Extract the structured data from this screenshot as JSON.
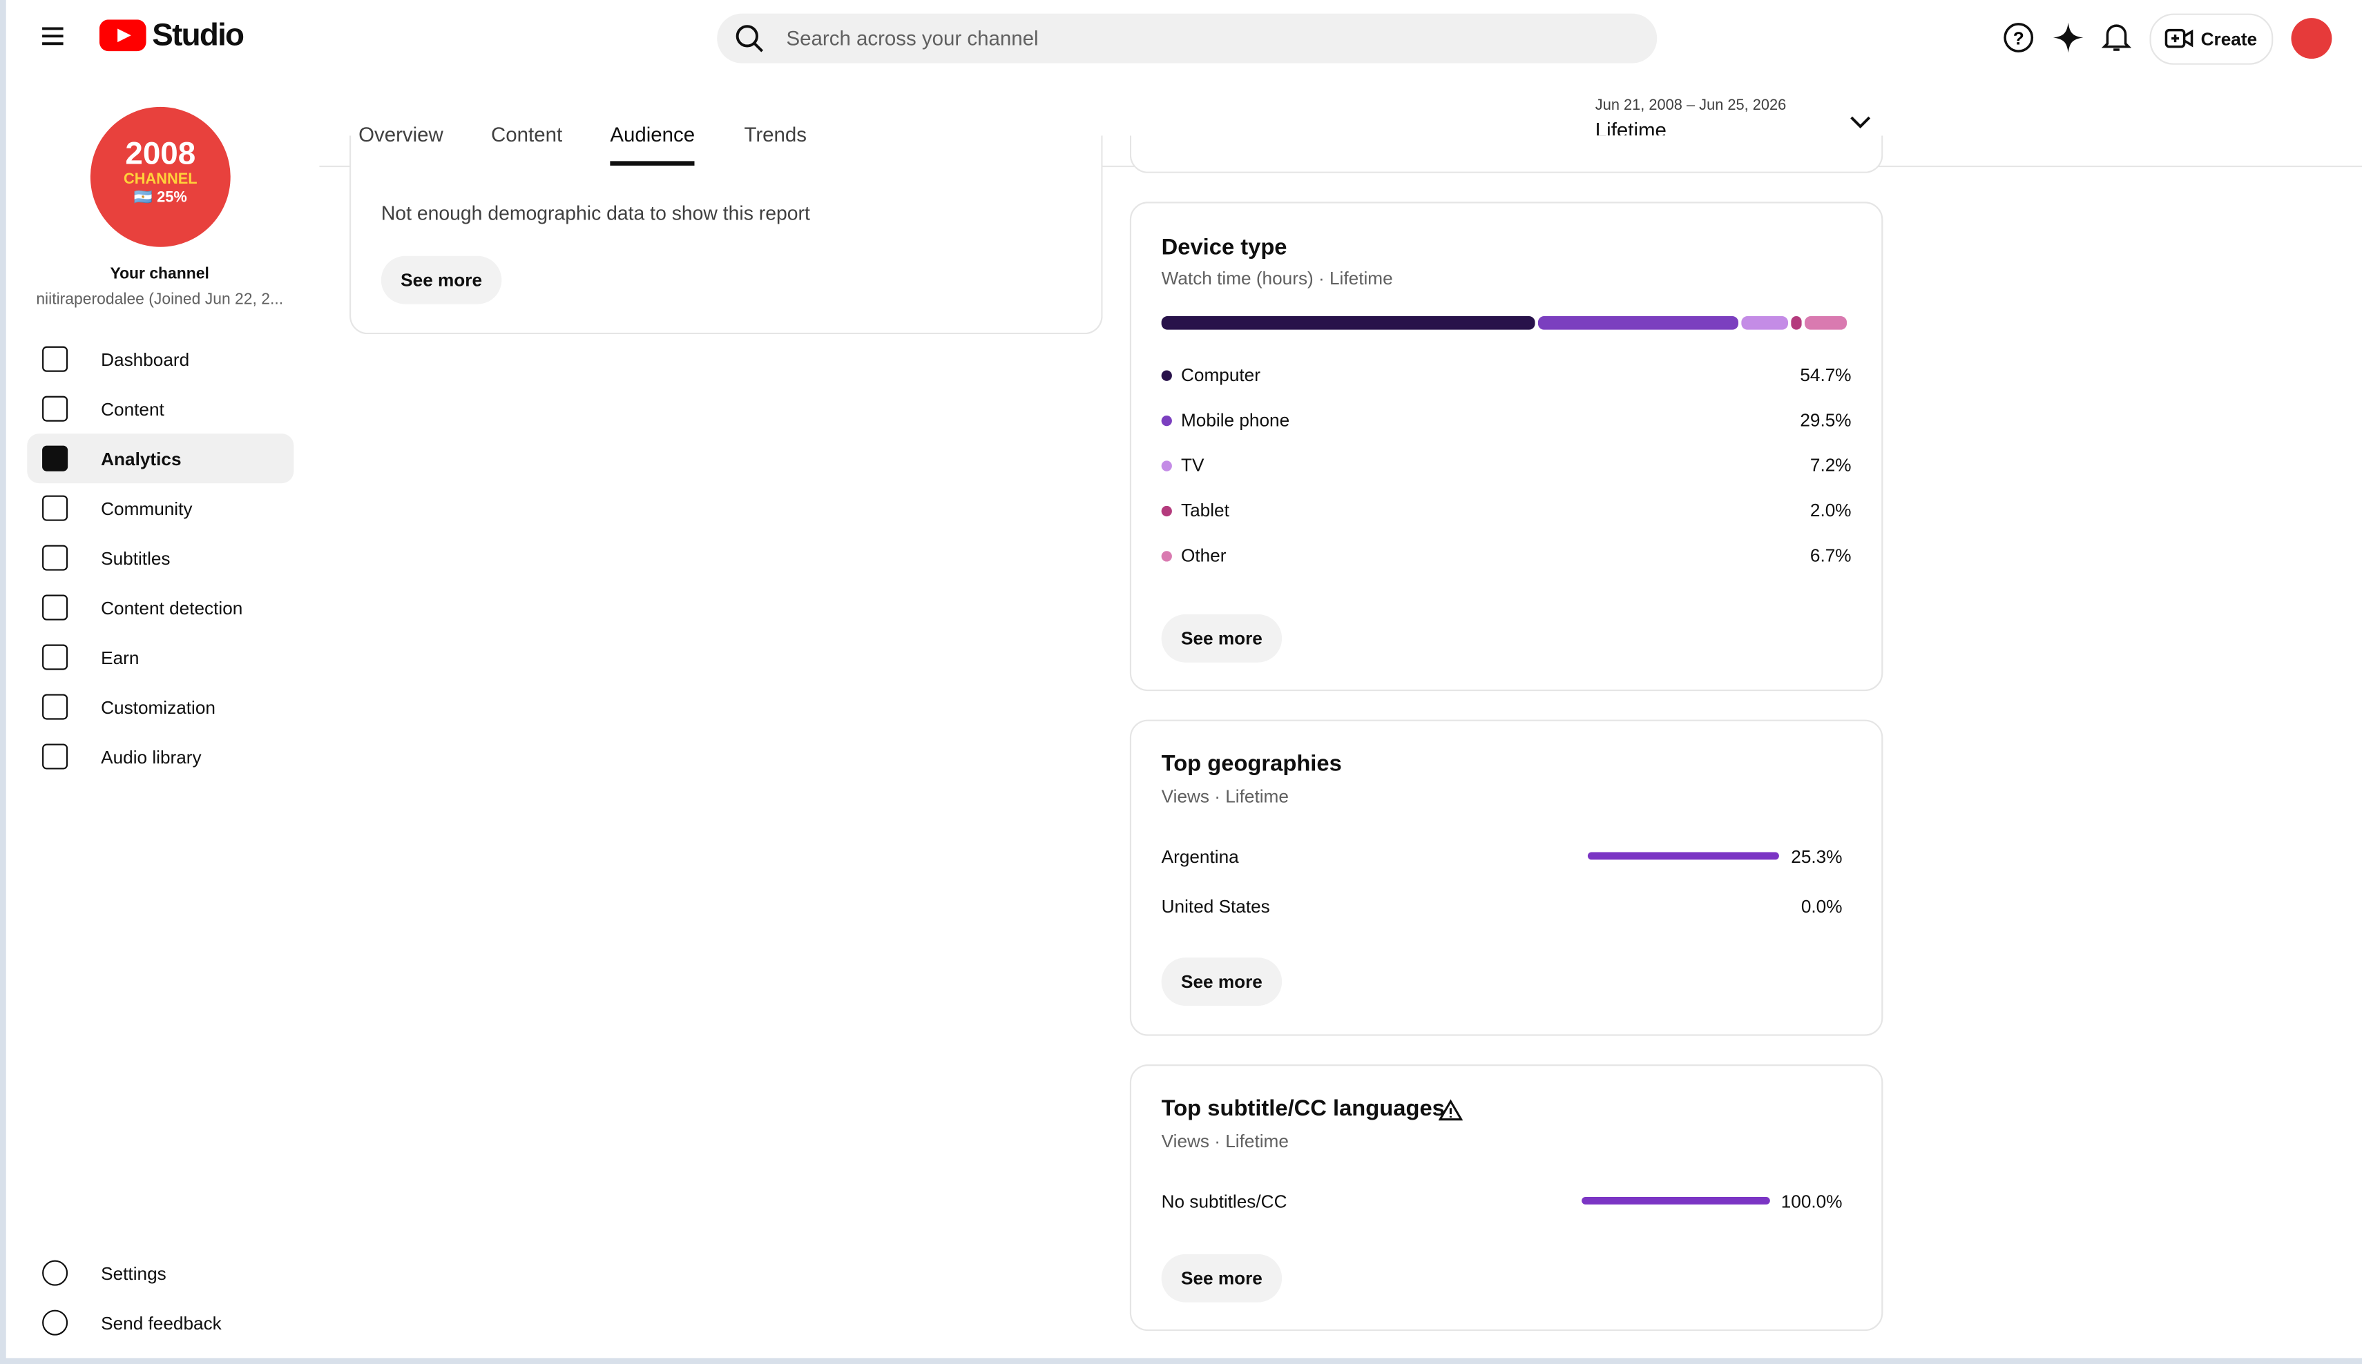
{
  "header": {
    "logo": "Studio",
    "search_placeholder": "Search across your channel",
    "create": "Create"
  },
  "sidebar": {
    "avatar": [
      "2008",
      "CHANNEL",
      "🇦🇷 25%"
    ],
    "channel_title": "Your channel",
    "channel_subtitle": "niitiraperodalee (Joined Jun 22, 2...",
    "nav": [
      "Dashboard",
      "Content",
      "Analytics",
      "Community",
      "Subtitles",
      "Content detection",
      "Earn",
      "Customization",
      "Audio library"
    ],
    "active_nav": 2,
    "bottom": [
      "Settings",
      "Send feedback"
    ]
  },
  "tabs": [
    "Overview",
    "Content",
    "Audience",
    "Trends"
  ],
  "active_tab": 2,
  "date_range": {
    "range": "Jun 21, 2008 – Jun 25, 2026",
    "label": "Lifetime"
  },
  "demographics": {
    "message": "Not enough demographic data to show this report",
    "button": "See more"
  },
  "device_type": {
    "title": "Device type",
    "subtitle": "Watch time (hours) · Lifetime",
    "button": "See more",
    "items": [
      {
        "name": "Computer",
        "value": 54.7,
        "value_label": "54.7%",
        "color": "#28124a"
      },
      {
        "name": "Mobile phone",
        "value": 29.5,
        "value_label": "29.5%",
        "color": "#7b3fbf"
      },
      {
        "name": "TV",
        "value": 7.2,
        "value_label": "7.2%",
        "color": "#c48ce6"
      },
      {
        "name": "Tablet",
        "value": 2.0,
        "value_label": "2.0%",
        "color": "#b43b7d"
      },
      {
        "name": "Other",
        "value": 6.7,
        "value_label": "6.7%",
        "color": "#d97ab0"
      }
    ]
  },
  "top_geographies": {
    "title": "Top geographies",
    "subtitle": "Views · Lifetime",
    "button": "See more",
    "color": "#7b35c4",
    "items": [
      {
        "name": "Argentina",
        "value": 25.3,
        "value_label": "25.3%"
      },
      {
        "name": "United States",
        "value": 0.0,
        "value_label": "0.0%"
      }
    ]
  },
  "top_subtitles": {
    "title": "Top subtitle/CC languages",
    "subtitle": "Views · Lifetime",
    "button": "See more",
    "color": "#7b35c4",
    "items": [
      {
        "name": "No subtitles/CC",
        "value": 100.0,
        "value_label": "100.0%"
      }
    ]
  }
}
